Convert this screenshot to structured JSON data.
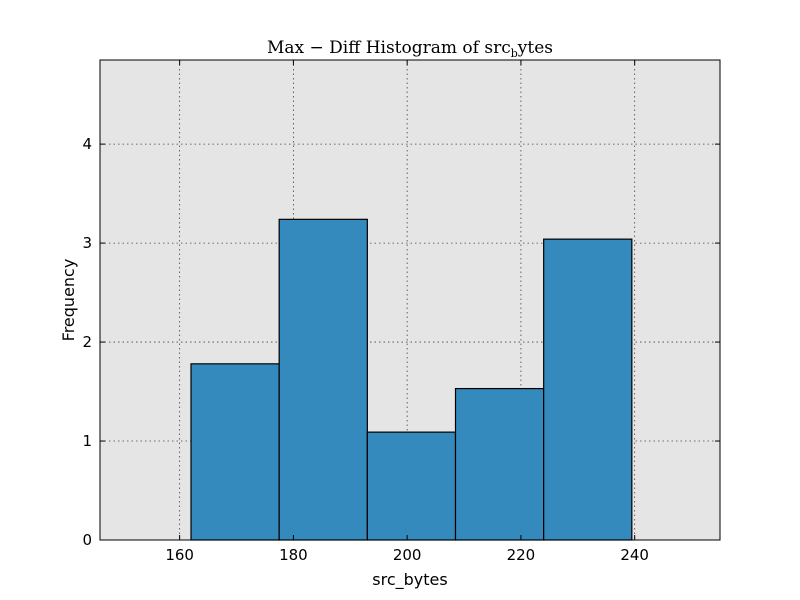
{
  "chart_data": {
    "type": "bar",
    "title": "Max − Diff Histogram of src_bytes",
    "title_parts": {
      "main": "Max − Diff Histogram of src",
      "sub": "b",
      "tail": "ytes"
    },
    "xlabel": "src_bytes",
    "ylabel": "Frequency",
    "xlim": [
      146,
      255
    ],
    "ylim": [
      0,
      4.85
    ],
    "xticks": [
      160,
      180,
      200,
      220,
      240
    ],
    "yticks": [
      0,
      1,
      2,
      3,
      4
    ],
    "grid": true,
    "bar_color": "#348abd",
    "background_color": "#e5e5e5",
    "bins": [
      {
        "x0": 162,
        "x1": 177.5,
        "value": 1.78
      },
      {
        "x0": 177.5,
        "x1": 193,
        "value": 3.24
      },
      {
        "x0": 193,
        "x1": 208.5,
        "value": 1.09
      },
      {
        "x0": 208.5,
        "x1": 224,
        "value": 1.53
      },
      {
        "x0": 224,
        "x1": 239.5,
        "value": 3.04
      }
    ]
  }
}
